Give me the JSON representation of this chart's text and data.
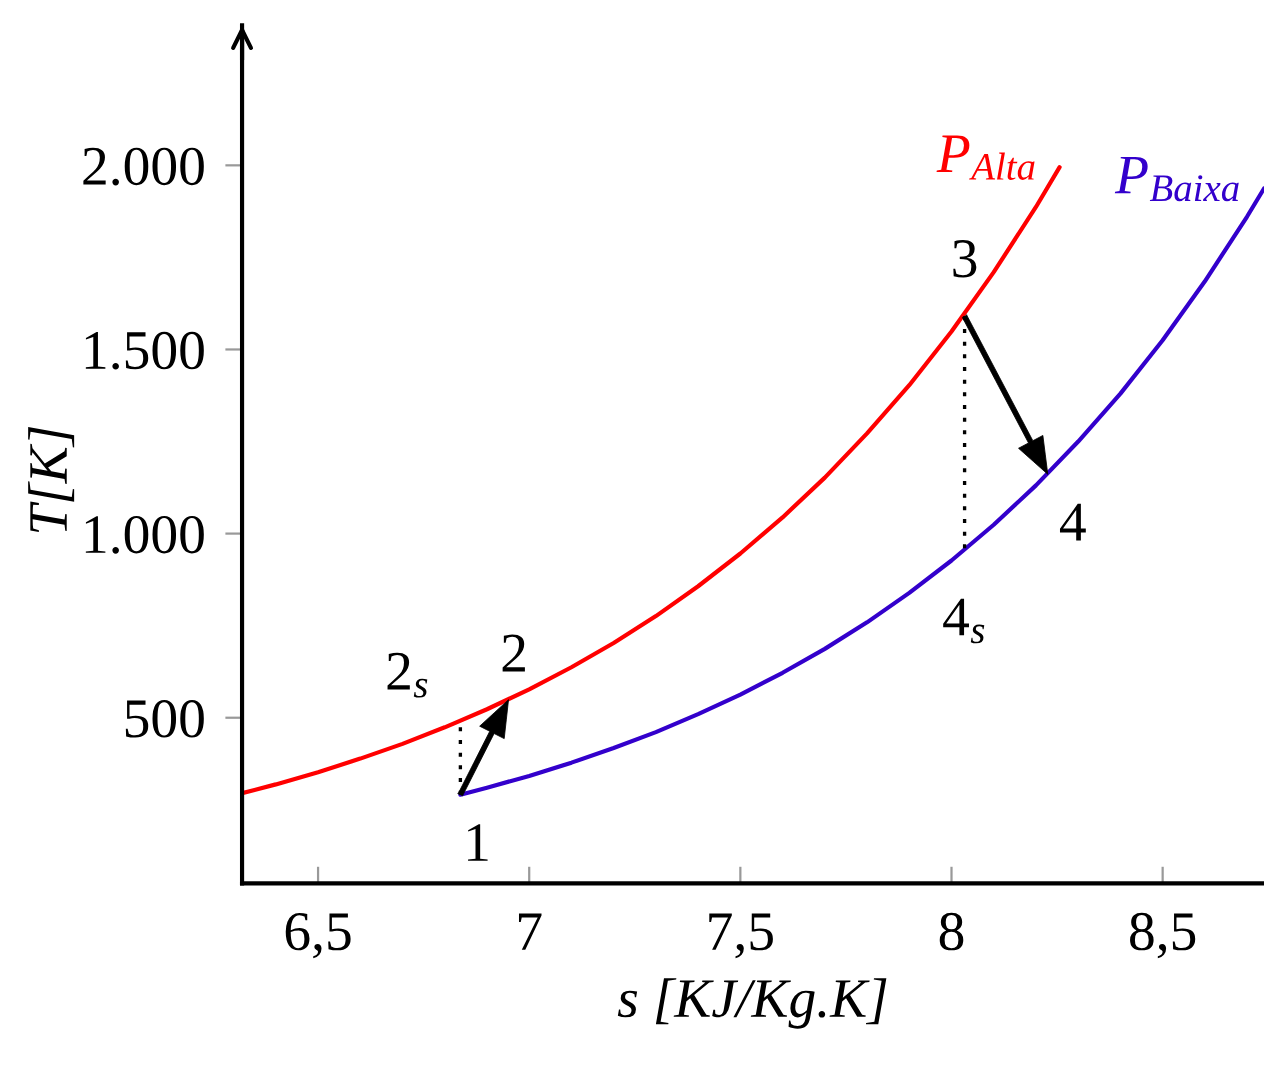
{
  "chart_data": {
    "type": "line",
    "xlabel": "s [KJ/Kg.K]",
    "ylabel": "T[K]",
    "xlim": [
      6.32,
      8.74
    ],
    "ylim": [
      50,
      2380
    ],
    "xticks": [
      {
        "value": 6.5,
        "label": "6,5"
      },
      7,
      {
        "value": 7.5,
        "label": "7,5"
      },
      8,
      {
        "value": 8.5,
        "label": "8,5"
      }
    ],
    "yticks": [
      500,
      {
        "value": 1000,
        "label": "1.000"
      },
      {
        "value": 1500,
        "label": "1.500"
      },
      {
        "value": 2000,
        "label": "2.000"
      }
    ],
    "series": [
      {
        "name": "P$_{Alta}$",
        "color": "#ff0000",
        "line_style": "solid",
        "x": [
          6.32,
          6.4,
          6.5,
          6.6,
          6.7,
          6.8,
          6.9,
          7.0,
          7.1,
          7.2,
          7.3,
          7.4,
          7.5,
          7.6,
          7.7,
          7.8,
          7.9,
          8.0,
          8.1,
          8.2,
          8.256
        ],
        "values": [
          295,
          319,
          352,
          389,
          429,
          474,
          523,
          577,
          637,
          703,
          776,
          857,
          946,
          1044,
          1152,
          1272,
          1403,
          1549,
          1710,
          1887,
          1995
        ]
      },
      {
        "name": "P$_{Baixa}$",
        "color": "#3300cc",
        "line_style": "solid",
        "x": [
          6.837,
          6.9,
          7.0,
          7.1,
          7.2,
          7.3,
          7.4,
          7.5,
          7.6,
          7.7,
          7.8,
          7.9,
          8.0,
          8.1,
          8.2,
          8.3,
          8.4,
          8.5,
          8.6,
          8.7,
          8.74
        ],
        "values": [
          291,
          310,
          342,
          378,
          418,
          461,
          510,
          563,
          622,
          687,
          759,
          839,
          927,
          1024,
          1131,
          1250,
          1380,
          1525,
          1685,
          1861,
          1937
        ]
      },
      {
        "type": "line",
        "color": "#000000",
        "line_style": "dotted",
        "x": [
          6.837,
          6.837
        ],
        "values": [
          291,
          491
        ]
      },
      {
        "type": "line",
        "color": "#000000",
        "line_style": "dotted",
        "x": [
          8.031,
          8.031
        ],
        "values": [
          1590,
          956
        ]
      }
    ],
    "annotations": [
      {
        "text": "1",
        "x": 6.837,
        "y": 291
      },
      {
        "text": "2",
        "x": 6.951,
        "y": 549
      },
      {
        "text": "2$_{s}$",
        "x": 6.837,
        "y": 491
      },
      {
        "text": "3",
        "x": 8.031,
        "y": 1590
      },
      {
        "text": "4",
        "x": 8.228,
        "y": 1161
      },
      {
        "text": "4$_{s}$",
        "x": 8.031,
        "y": 956
      }
    ]
  }
}
